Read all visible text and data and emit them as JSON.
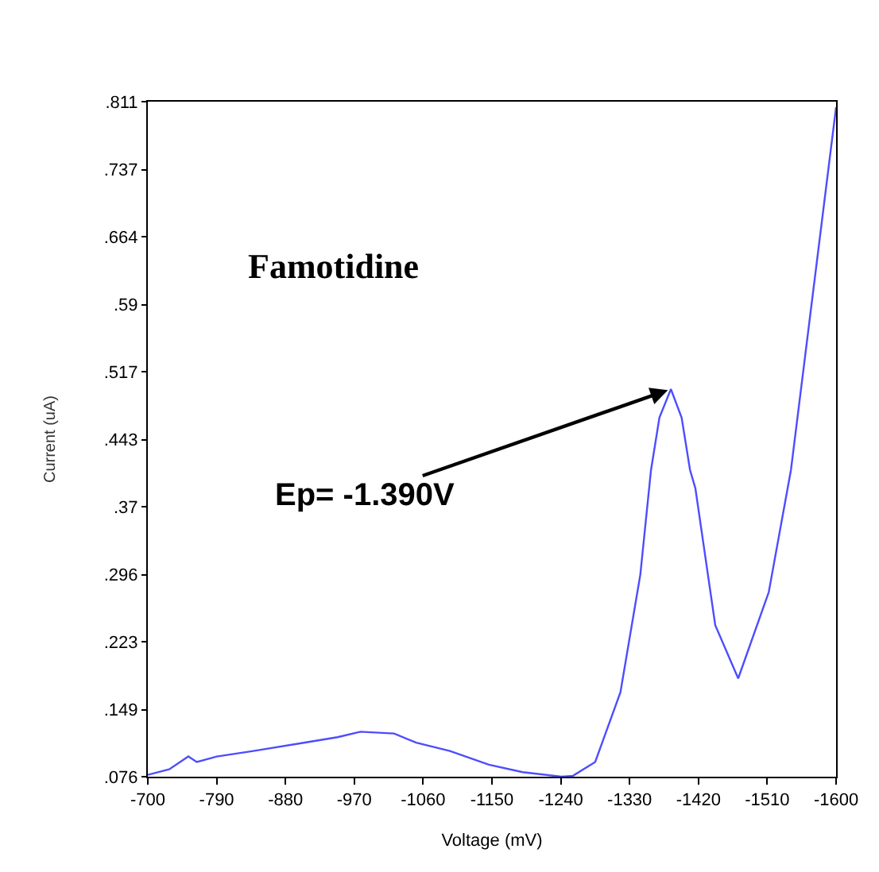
{
  "chart_data": {
    "type": "line",
    "xlabel": "Voltage (mV)",
    "ylabel": "Current (uA)",
    "x": [
      -700,
      -728,
      -753,
      -764,
      -790,
      -838,
      -904,
      -948,
      -978,
      -1022,
      -1051,
      -1095,
      -1146,
      -1190,
      -1241,
      -1256,
      -1285,
      -1318,
      -1344,
      -1358,
      -1369,
      -1384,
      -1398,
      -1409,
      -1416,
      -1442,
      -1472,
      -1512,
      -1541,
      -1600
    ],
    "series": [
      {
        "color": "#4d4dff",
        "values": [
          0.078,
          0.084,
          0.098,
          0.092,
          0.098,
          0.104,
          0.113,
          0.119,
          0.125,
          0.123,
          0.113,
          0.104,
          0.089,
          0.081,
          0.076,
          0.077,
          0.092,
          0.168,
          0.296,
          0.41,
          0.467,
          0.498,
          0.467,
          0.41,
          0.39,
          0.241,
          0.183,
          0.277,
          0.41,
          0.805
        ]
      }
    ],
    "xlim": [
      -700,
      -1600
    ],
    "xticks": [
      -700,
      -790,
      -880,
      -970,
      -1060,
      -1150,
      -1240,
      -1330,
      -1420,
      -1510,
      -1600
    ],
    "ylim": [
      0.076,
      0.811
    ],
    "yticks": [
      {
        "value": 0.076,
        "label": ".076"
      },
      {
        "value": 0.149,
        "label": ".149"
      },
      {
        "value": 0.223,
        "label": ".223"
      },
      {
        "value": 0.296,
        "label": ".296"
      },
      {
        "value": 0.37,
        "label": ".37"
      },
      {
        "value": 0.443,
        "label": ".443"
      },
      {
        "value": 0.517,
        "label": ".517"
      },
      {
        "value": 0.59,
        "label": ".59"
      },
      {
        "value": 0.664,
        "label": ".664"
      },
      {
        "value": 0.737,
        "label": ".737"
      },
      {
        "value": 0.811,
        "label": ".811"
      }
    ],
    "annotations": [
      "Famotidine",
      {
        "text": "Ep= -1.390V",
        "x": -1384,
        "y": 0.498
      }
    ],
    "line_style": "solid"
  }
}
